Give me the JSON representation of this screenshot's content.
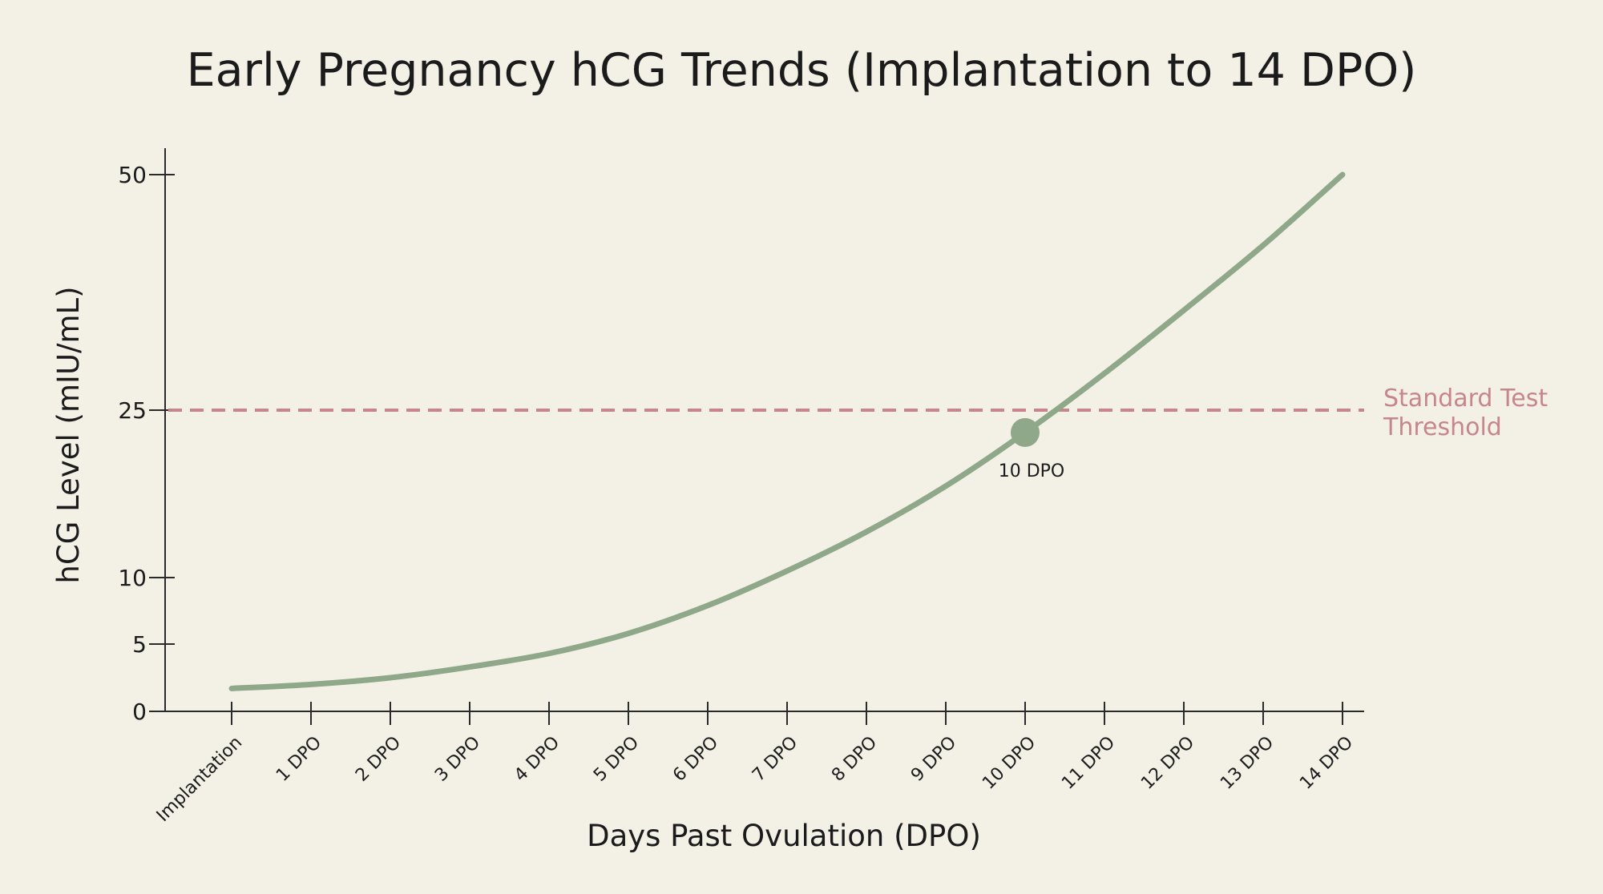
{
  "chart_data": {
    "type": "line",
    "title": "Early Pregnancy hCG Trends (Implantation to 14 DPO)",
    "xlabel": "Days Past Ovulation (DPO)",
    "ylabel": "hCG Level (mIU/mL)",
    "categories": [
      "Implantation",
      "1 DPO",
      "2 DPO",
      "3 DPO",
      "4 DPO",
      "5 DPO",
      "6 DPO",
      "7 DPO",
      "8 DPO",
      "9 DPO",
      "10 DPO",
      "11 DPO",
      "12 DPO",
      "13 DPO",
      "14 DPO"
    ],
    "yticks": [
      0,
      5,
      10,
      25,
      50
    ],
    "ylim": [
      0,
      52
    ],
    "series": [
      {
        "color": "#8fa889",
        "values": [
          1.7,
          2.0,
          2.5,
          3.3,
          4.3,
          5.8,
          7.9,
          10.6,
          14.1,
          18.2,
          23.0,
          28.9,
          35.6,
          42.5,
          50.0
        ]
      }
    ],
    "threshold": {
      "value": 25,
      "label_line1": "Standard Test",
      "label_line2": "Threshold",
      "color": "#c7858c"
    },
    "marker": {
      "category": "10 DPO",
      "value": 23.0,
      "label": "10 DPO"
    },
    "grid": false
  }
}
